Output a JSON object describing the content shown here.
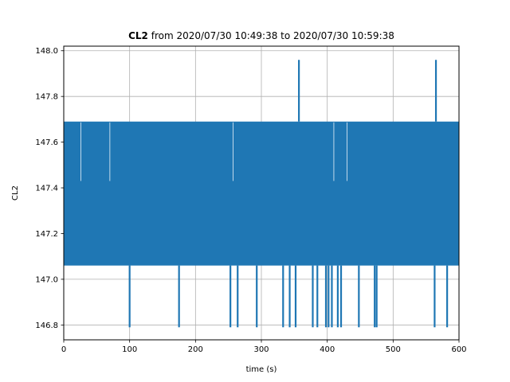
{
  "chart_data": {
    "type": "line",
    "title_bold": "CL2",
    "title_rest": " from 2020/07/30 10:49:38 to 2020/07/30 10:59:38",
    "xlabel": "time (s)",
    "ylabel": "CL2",
    "xlim": [
      0,
      600
    ],
    "ylim": [
      146.735,
      148.02
    ],
    "xticks": [
      0,
      100,
      200,
      300,
      400,
      500,
      600
    ],
    "xtick_labels": [
      "0",
      "100",
      "200",
      "300",
      "400",
      "500",
      "600"
    ],
    "yticks": [
      146.8,
      147.0,
      147.2,
      147.4,
      147.6,
      147.8,
      148.0
    ],
    "ytick_labels": [
      "146.8",
      "147.0",
      "147.2",
      "147.4",
      "147.6",
      "147.8",
      "148.0"
    ],
    "grid": true,
    "series": [
      {
        "color": "#1f77b4",
        "band_low": 147.06,
        "band_high": 147.69,
        "x_start": 0,
        "x_end": 600,
        "spikes_up": [
          {
            "x": 357,
            "y": 147.96
          },
          {
            "x": 565,
            "y": 147.96
          }
        ],
        "spikes_down": [
          {
            "x": 100,
            "y": 146.79
          },
          {
            "x": 175,
            "y": 146.79
          },
          {
            "x": 253,
            "y": 146.79
          },
          {
            "x": 264,
            "y": 146.79
          },
          {
            "x": 293,
            "y": 146.79
          },
          {
            "x": 333,
            "y": 146.79
          },
          {
            "x": 343,
            "y": 146.79
          },
          {
            "x": 352,
            "y": 146.79
          },
          {
            "x": 378,
            "y": 146.79
          },
          {
            "x": 385,
            "y": 146.79
          },
          {
            "x": 398,
            "y": 146.79
          },
          {
            "x": 402,
            "y": 146.79
          },
          {
            "x": 407,
            "y": 146.79
          },
          {
            "x": 416,
            "y": 146.79
          },
          {
            "x": 421,
            "y": 146.79
          },
          {
            "x": 448,
            "y": 146.79
          },
          {
            "x": 472,
            "y": 146.79
          },
          {
            "x": 475,
            "y": 146.79
          },
          {
            "x": 563,
            "y": 146.79
          },
          {
            "x": 582,
            "y": 146.79
          }
        ],
        "gaps": [
          {
            "x": 26,
            "y": 147.43
          },
          {
            "x": 70,
            "y": 147.43
          },
          {
            "x": 257,
            "y": 147.43
          },
          {
            "x": 410,
            "y": 147.43
          },
          {
            "x": 430,
            "y": 147.43
          }
        ]
      }
    ]
  }
}
